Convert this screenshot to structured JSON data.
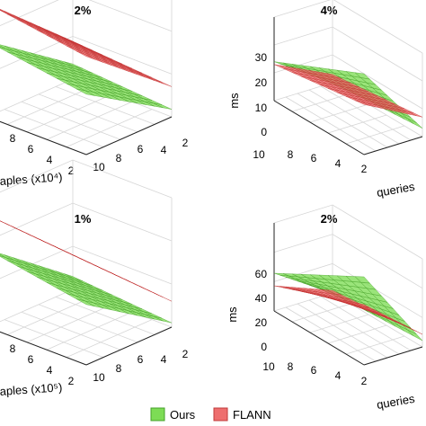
{
  "chart_data": [
    {
      "type": "surface3d",
      "title": "2%",
      "xlabel": "aples (x10⁴)",
      "ylabel": "",
      "zlabel": "",
      "x_ticks": [
        "8",
        "6",
        "4",
        "2"
      ],
      "y_ticks": [
        "10",
        "8",
        "6",
        "4",
        "2"
      ],
      "z_ticks": [],
      "grid": true,
      "series": [
        {
          "name": "FLANN",
          "corner_values": [
            [
              26,
              8
            ],
            [
              30,
              10
            ]
          ]
        },
        {
          "name": "Ours",
          "corner_values": [
            [
              16,
              2
            ],
            [
              20,
              4
            ]
          ]
        }
      ]
    },
    {
      "type": "surface3d",
      "title": "4%",
      "xlabel": "",
      "ylabel": "queries",
      "zlabel": "ms",
      "x_ticks": [],
      "y_ticks": [
        "10",
        "8",
        "6",
        "4",
        "2"
      ],
      "z_ticks": [
        "0",
        "10",
        "20",
        "30"
      ],
      "zlim": [
        0,
        30
      ],
      "grid": true,
      "series": [
        {
          "name": "Ours",
          "corner_values": [
            [
              29,
              3
            ],
            [
              14,
              0
            ]
          ]
        },
        {
          "name": "FLANN",
          "corner_values": [
            [
              18,
              7
            ],
            [
              13,
              3
            ]
          ]
        }
      ]
    },
    {
      "type": "surface3d",
      "title": "1%",
      "xlabel": "aples (x10⁵)",
      "ylabel": "",
      "zlabel": "",
      "x_ticks": [
        "8",
        "6",
        "4",
        "2"
      ],
      "y_ticks": [
        "10",
        "8",
        "6",
        "4",
        "2"
      ],
      "z_ticks": [],
      "grid": true,
      "series": [
        {
          "name": "FLANN",
          "corner_values": [
            [
              24,
              6
            ],
            [
              26,
              8
            ]
          ]
        },
        {
          "name": "Ours",
          "corner_values": [
            [
              14,
              1
            ],
            [
              18,
              3
            ]
          ]
        }
      ]
    },
    {
      "type": "surface3d",
      "title": "2%",
      "xlabel": "",
      "ylabel": "queries",
      "zlabel": "ms",
      "x_ticks": [],
      "y_ticks": [
        "10",
        "8",
        "6",
        "4",
        "2"
      ],
      "z_ticks": [
        "0",
        "20",
        "40",
        "60"
      ],
      "zlim": [
        0,
        70
      ],
      "grid": true,
      "series": [
        {
          "name": "Ours",
          "corner_values": [
            [
              70,
              5
            ],
            [
              30,
              0
            ]
          ]
        },
        {
          "name": "FLANN",
          "corner_values": [
            [
              48,
              10
            ],
            [
              20,
              2
            ]
          ]
        }
      ]
    }
  ],
  "legend": {
    "items": [
      {
        "label": "Ours",
        "color": "#7ddc55"
      },
      {
        "label": "FLANN",
        "color": "#ee6e6e"
      }
    ]
  },
  "colors": {
    "ours": "#7ddc55",
    "flann": "#ee6e6e",
    "grid": "#d6d6d6"
  }
}
